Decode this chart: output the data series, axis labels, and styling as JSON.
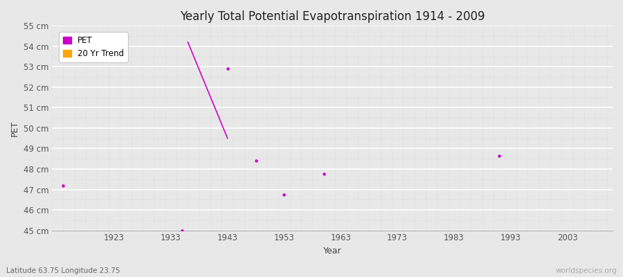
{
  "title": "Yearly Total Potential Evapotranspiration 1914 - 2009",
  "xlabel": "Year",
  "ylabel": "PET",
  "xlim": [
    1912,
    2011
  ],
  "ylim": [
    45,
    55
  ],
  "yticks": [
    45,
    46,
    47,
    48,
    49,
    50,
    51,
    52,
    53,
    54,
    55
  ],
  "ytick_labels": [
    "45 cm",
    "46 cm",
    "47 cm",
    "48 cm",
    "49 cm",
    "50 cm",
    "51 cm",
    "52 cm",
    "53 cm",
    "54 cm",
    "55 cm"
  ],
  "xticks": [
    1923,
    1933,
    1943,
    1953,
    1963,
    1973,
    1983,
    1993,
    2003
  ],
  "pet_color": "#cc00cc",
  "trend_color": "#ffa500",
  "bg_color": "#e8e8e8",
  "plot_bg_color": "#e8e8e8",
  "grid_major_color": "#ffffff",
  "grid_minor_color": "#d0d0d0",
  "pet_points_x": [
    1914,
    1935,
    1943,
    1948,
    1953,
    1960,
    1991
  ],
  "pet_points_y": [
    47.2,
    45.0,
    52.9,
    48.4,
    46.75,
    47.75,
    48.65
  ],
  "trend_line_x": [
    1936,
    1943
  ],
  "trend_line_y": [
    54.2,
    49.5
  ],
  "subtitle_left": "Latitude 63.75 Longitude 23.75",
  "subtitle_right": "worldspecies.org"
}
